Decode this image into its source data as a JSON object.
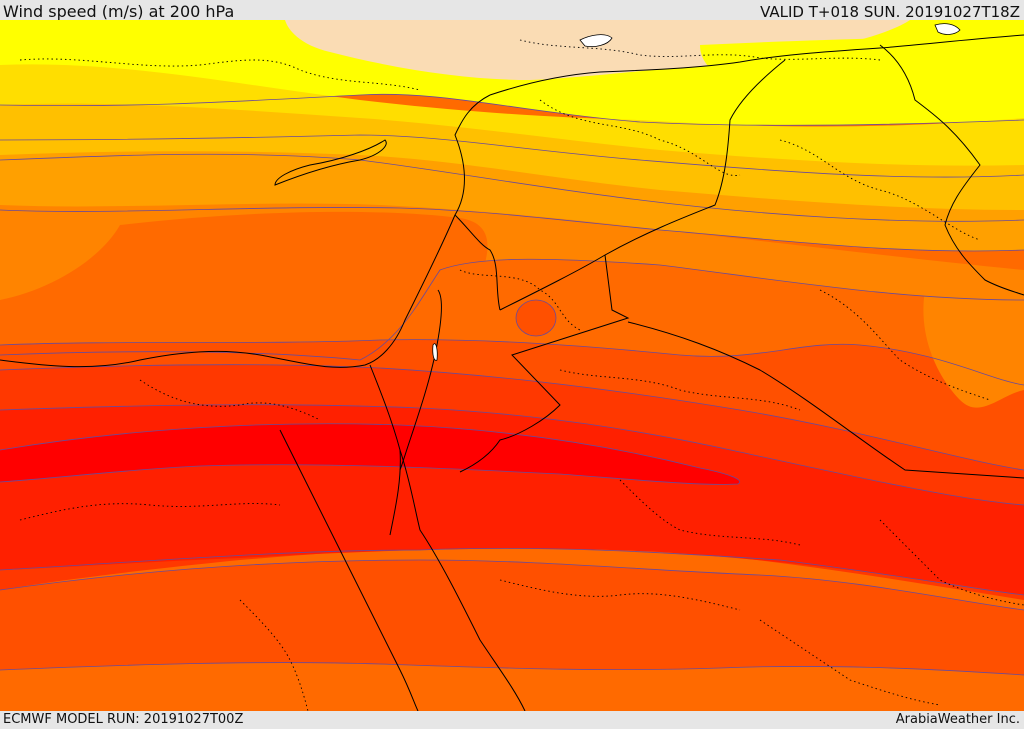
{
  "header": {
    "title": "Wind speed (m/s) at 200 hPa",
    "valid": "VALID T+018 SUN. 20191027T18Z"
  },
  "footer": {
    "model_run": "ECMWF MODEL RUN: 20191027T00Z",
    "credit": "ArabiaWeather Inc."
  },
  "map": {
    "field": "wind speed at 200 hPa",
    "palette": [
      "#fadcb4",
      "#ffff00",
      "#ffde00",
      "#ffc000",
      "#ffa000",
      "#ff8400",
      "#ff6a00",
      "#ff5000",
      "#ff3800",
      "#ff2000",
      "#ff0000"
    ],
    "contour_color": "#6a4a9a",
    "border_color": "#000000"
  }
}
